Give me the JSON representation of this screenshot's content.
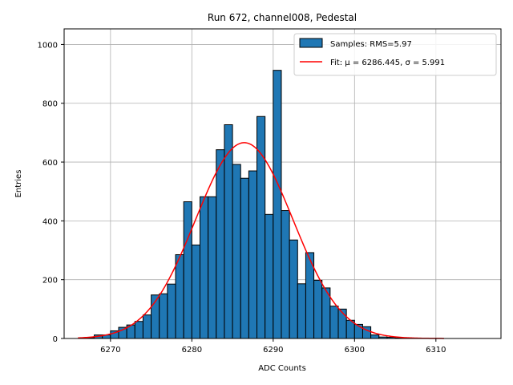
{
  "chart_data": {
    "type": "bar",
    "title": "Run 672, channel008, Pedestal",
    "xlabel": "ADC Counts",
    "ylabel": "Entries",
    "xlim": [
      6264.3,
      6318.0
    ],
    "ylim": [
      0,
      1053
    ],
    "xticks": [
      6270,
      6280,
      6290,
      6300,
      6310
    ],
    "yticks": [
      0,
      200,
      400,
      600,
      800,
      1000
    ],
    "grid": true,
    "legend_position": "top-right",
    "bin_width": 1,
    "bins": [
      [
        6267,
        3
      ],
      [
        6268,
        12
      ],
      [
        6269,
        12
      ],
      [
        6270,
        26
      ],
      [
        6271,
        38
      ],
      [
        6272,
        46
      ],
      [
        6273,
        58
      ],
      [
        6274,
        80
      ],
      [
        6275,
        148
      ],
      [
        6276,
        152
      ],
      [
        6277,
        185
      ],
      [
        6278,
        285
      ],
      [
        6279,
        465
      ],
      [
        6280,
        318
      ],
      [
        6281,
        482
      ],
      [
        6282,
        482
      ],
      [
        6283,
        642
      ],
      [
        6284,
        727
      ],
      [
        6285,
        592
      ],
      [
        6286,
        545
      ],
      [
        6287,
        570
      ],
      [
        6288,
        755
      ],
      [
        6289,
        422
      ],
      [
        6290,
        912
      ],
      [
        6291,
        435
      ],
      [
        6292,
        335
      ],
      [
        6293,
        186
      ],
      [
        6294,
        292
      ],
      [
        6295,
        198
      ],
      [
        6296,
        172
      ],
      [
        6297,
        110
      ],
      [
        6298,
        100
      ],
      [
        6299,
        62
      ],
      [
        6300,
        48
      ],
      [
        6301,
        40
      ],
      [
        6302,
        12
      ],
      [
        6303,
        5
      ],
      [
        6304,
        4
      ],
      [
        6305,
        2
      ],
      [
        6306,
        2
      ],
      [
        6307,
        1
      ]
    ],
    "fit": {
      "mu": 6286.445,
      "sigma": 5.991,
      "amplitude": 666,
      "x_range": [
        6266,
        6311
      ]
    },
    "series": [
      {
        "name": "Samples: RMS=5.97",
        "kind": "histogram",
        "color": "#1f77b4",
        "edgecolor": "#000000"
      },
      {
        "name": "Fit: μ = 6286.445, σ = 5.991",
        "kind": "line",
        "color": "#ff0000"
      }
    ]
  }
}
